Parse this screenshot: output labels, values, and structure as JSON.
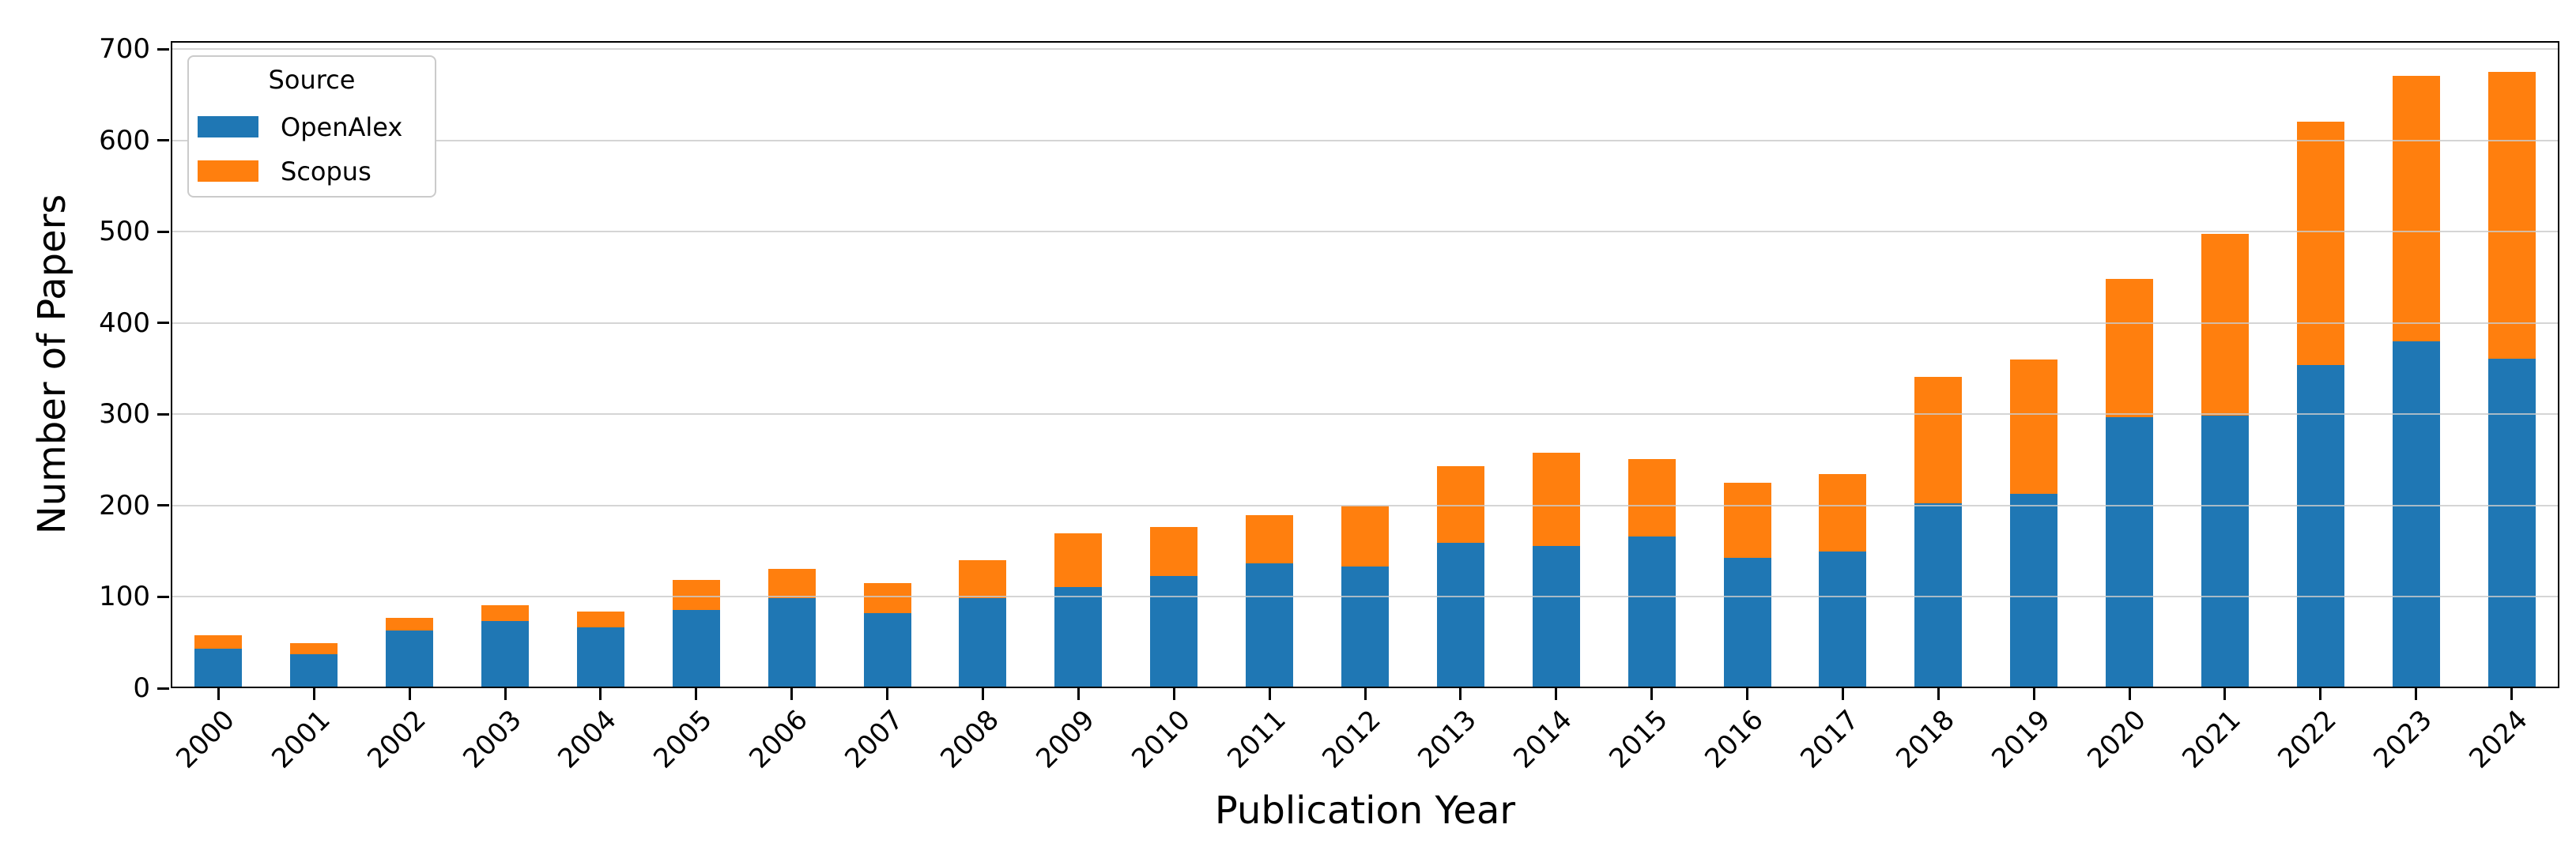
{
  "chart_data": {
    "type": "bar",
    "stacked": true,
    "title": "",
    "xlabel": "Publication Year",
    "ylabel": "Number of Papers",
    "legend_title": "Source",
    "legend_position": "upper left",
    "grid": true,
    "categories": [
      "2000",
      "2001",
      "2002",
      "2003",
      "2004",
      "2005",
      "2006",
      "2007",
      "2008",
      "2009",
      "2010",
      "2011",
      "2012",
      "2013",
      "2014",
      "2015",
      "2016",
      "2017",
      "2018",
      "2019",
      "2020",
      "2021",
      "2022",
      "2023",
      "2024"
    ],
    "series": [
      {
        "name": "OpenAlex",
        "color": "#1f77b4",
        "values": [
          43,
          37,
          63,
          74,
          67,
          86,
          99,
          82,
          99,
          111,
          123,
          137,
          133,
          159,
          156,
          166,
          143,
          150,
          203,
          213,
          297,
          299,
          354,
          380,
          361
        ]
      },
      {
        "name": "Scopus",
        "color": "#ff7f0e",
        "values": [
          15,
          12,
          14,
          17,
          17,
          33,
          32,
          33,
          41,
          59,
          54,
          53,
          67,
          84,
          102,
          85,
          82,
          85,
          138,
          147,
          151,
          199,
          267,
          291,
          314
        ]
      }
    ],
    "totals": [
      58,
      49,
      77,
      91,
      84,
      119,
      131,
      115,
      140,
      170,
      177,
      190,
      200,
      243,
      258,
      251,
      225,
      235,
      341,
      360,
      448,
      498,
      621,
      671,
      675
    ],
    "ylim": [
      0,
      709
    ],
    "yticks": [
      0,
      100,
      200,
      300,
      400,
      500,
      600,
      700
    ]
  }
}
